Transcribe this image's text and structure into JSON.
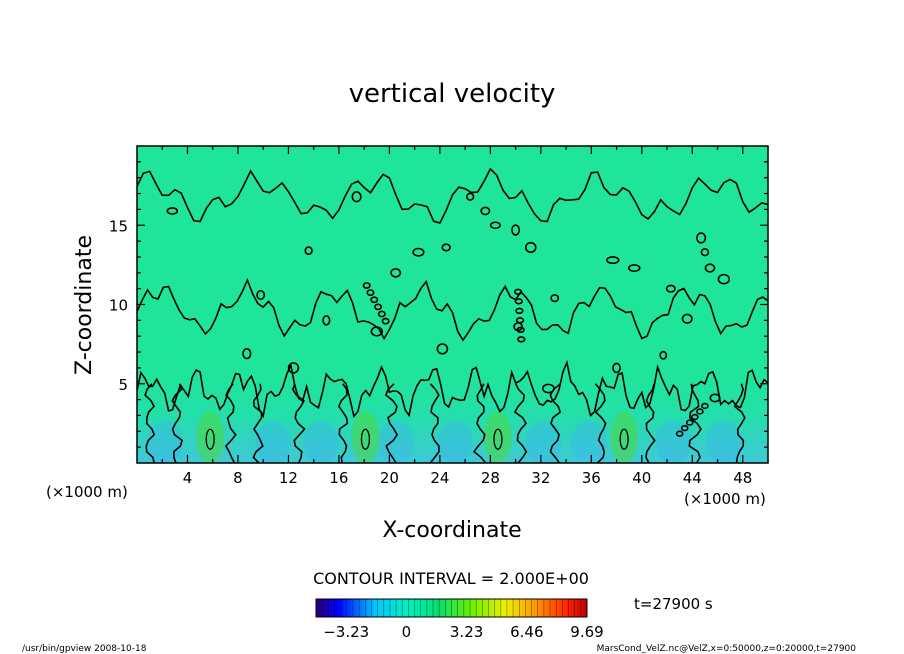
{
  "chart_data": {
    "type": "heatmap",
    "subtype": "contour",
    "title": "vertical velocity",
    "xlabel": "X-coordinate",
    "ylabel": "Z-coordinate",
    "x_unit_left": "(×1000 m)",
    "x_unit_right": "(×1000 m)",
    "xlim": [
      0,
      50
    ],
    "ylim": [
      0,
      20
    ],
    "x_ticks": [
      4,
      8,
      12,
      16,
      20,
      24,
      28,
      32,
      36,
      40,
      44,
      48
    ],
    "y_ticks": [
      5,
      10,
      15
    ],
    "contour_interval_text": "CONTOUR INTERVAL = 2.000E+00",
    "colorbar": {
      "min": -4.85,
      "max": 9.69,
      "tick_values": [
        -3.23,
        0,
        3.23,
        6.46,
        9.69
      ],
      "tick_labels": [
        "−3.23",
        "0",
        "3.23",
        "6.46",
        "9.69"
      ]
    },
    "updraft_cores_x": [
      5.8,
      18.1,
      28.6,
      38.6
    ],
    "time_label": "t=27900 s",
    "footer_left": "/usr/bin/gpview   2008-10-18",
    "footer_right": "MarsCond_VelZ.nc@VelZ,x=0:50000,z=0:20000,t=27900"
  }
}
